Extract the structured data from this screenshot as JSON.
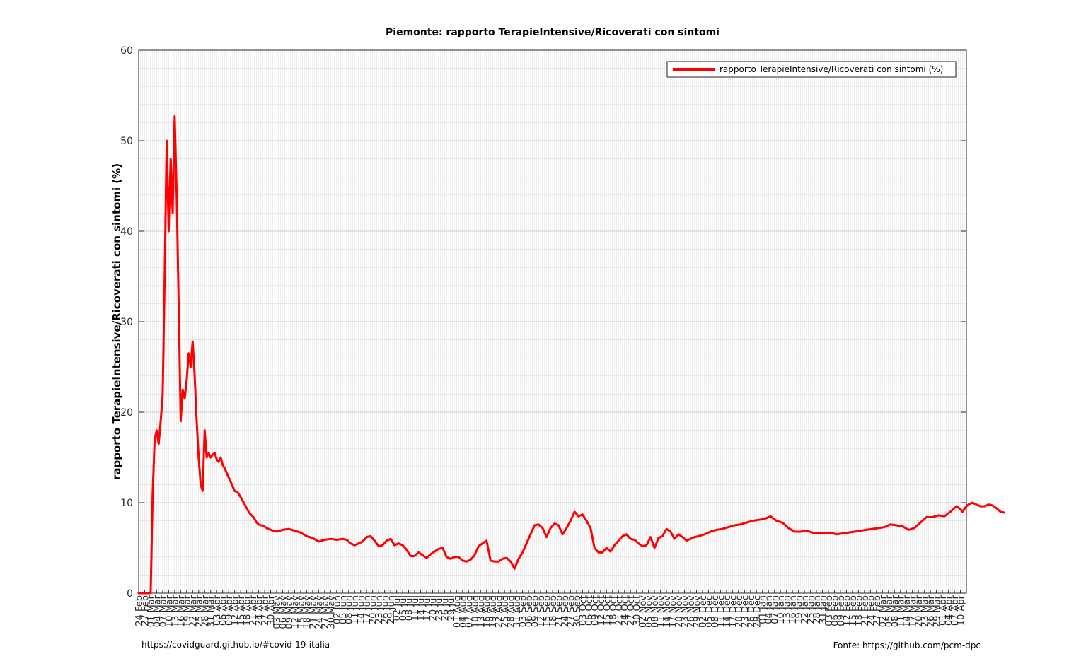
{
  "footer": {
    "left": "https://covidguard.github.io/#covid-19-italia",
    "right": "Fonte: https://github.com/pcm-dpc"
  },
  "chart_data": {
    "type": "line",
    "title": "Piemonte: rapporto TerapieIntensive/Ricoverati con sintomi",
    "xlabel": "",
    "ylabel": "rapporto TerapieIntensive/Ricoverati con sintomi (%)",
    "ylim": [
      0,
      60
    ],
    "yticks": [
      0,
      10,
      20,
      30,
      40,
      50,
      60
    ],
    "xlim": [
      "2020-02-24",
      "2021-04-13"
    ],
    "grid": true,
    "legend_position": "top-right",
    "x_tick_labels": [
      "24 Feb",
      "27 Feb",
      "01 Mar",
      "04 Mar",
      "07 Mar",
      "10 Mar",
      "13 Mar",
      "16 Mar",
      "19 Mar",
      "22 Mar",
      "25 Mar",
      "28 Mar",
      "31 Mar",
      "03 Apr",
      "06 Apr",
      "09 Apr",
      "12 Apr",
      "15 Apr",
      "18 Apr",
      "21 Apr",
      "24 Apr",
      "27 Apr",
      "30 Apr",
      "03 May",
      "06 May",
      "09 May",
      "12 May",
      "15 May",
      "18 May",
      "21 May",
      "24 May",
      "27 May",
      "30 May",
      "02 Jun",
      "05 Jun",
      "08 Jun",
      "11 Jun",
      "14 Jun",
      "17 Jun",
      "20 Jun",
      "23 Jun",
      "26 Jun",
      "29 Jun",
      "02 Jul",
      "05 Jul",
      "08 Jul",
      "11 Jul",
      "14 Jul",
      "17 Jul",
      "20 Jul",
      "23 Jul",
      "26 Jul",
      "29 Jul",
      "01 Aug",
      "04 Aug",
      "07 Aug",
      "10 Aug",
      "13 Aug",
      "16 Aug",
      "19 Aug",
      "22 Aug",
      "25 Aug",
      "28 Aug",
      "31 Aug",
      "03 Sep",
      "06 Sep",
      "09 Sep",
      "12 Sep",
      "15 Sep",
      "18 Sep",
      "21 Sep",
      "24 Sep",
      "27 Sep",
      "30 Sep",
      "03 Oct",
      "06 Oct",
      "09 Oct",
      "12 Oct",
      "15 Oct",
      "18 Oct",
      "21 Oct",
      "24 Oct",
      "27 Oct",
      "30 Oct",
      "02 Nov",
      "05 Nov",
      "08 Nov",
      "11 Nov",
      "14 Nov",
      "17 Nov",
      "20 Nov",
      "23 Nov",
      "26 Nov",
      "29 Nov",
      "02 Dec",
      "05 Dec",
      "08 Dec",
      "11 Dec",
      "14 Dec",
      "17 Dec",
      "20 Dec",
      "23 Dec",
      "26 Dec",
      "29 Dec",
      "01 Jan",
      "04 Jan",
      "07 Jan",
      "10 Jan",
      "13 Jan",
      "16 Jan",
      "19 Jan",
      "22 Jan",
      "25 Jan",
      "28 Jan",
      "31 Jan",
      "03 Feb",
      "06 Feb",
      "09 Feb",
      "12 Feb",
      "15 Feb",
      "18 Feb",
      "21 Feb",
      "24 Feb",
      "27 Feb",
      "02 Mar",
      "05 Mar",
      "08 Mar",
      "11 Mar",
      "14 Mar",
      "17 Mar",
      "20 Mar",
      "23 Mar",
      "26 Mar",
      "29 Mar",
      "01 Apr",
      "04 Apr",
      "07 Apr",
      "10 Apr"
    ],
    "series": [
      {
        "name": "rapporto TerapieIntensive/Ricoverati con sintomi (%)",
        "color": "#ff0000",
        "points": [
          [
            "2020-02-24",
            0
          ],
          [
            "2020-02-25",
            0
          ],
          [
            "2020-02-26",
            0
          ],
          [
            "2020-02-27",
            0
          ],
          [
            "2020-02-28",
            0
          ],
          [
            "2020-02-29",
            0
          ],
          [
            "2020-03-01",
            0
          ],
          [
            "2020-03-02",
            11
          ],
          [
            "2020-03-03",
            17
          ],
          [
            "2020-03-04",
            18
          ],
          [
            "2020-03-05",
            16.5
          ],
          [
            "2020-03-06",
            19
          ],
          [
            "2020-03-07",
            22
          ],
          [
            "2020-03-08",
            35
          ],
          [
            "2020-03-09",
            50
          ],
          [
            "2020-03-10",
            40
          ],
          [
            "2020-03-11",
            48
          ],
          [
            "2020-03-12",
            42
          ],
          [
            "2020-03-13",
            52.7
          ],
          [
            "2020-03-14",
            44
          ],
          [
            "2020-03-15",
            32
          ],
          [
            "2020-03-16",
            19
          ],
          [
            "2020-03-17",
            22.5
          ],
          [
            "2020-03-18",
            21.5
          ],
          [
            "2020-03-19",
            23.5
          ],
          [
            "2020-03-20",
            26.5
          ],
          [
            "2020-03-21",
            25
          ],
          [
            "2020-03-22",
            27.8
          ],
          [
            "2020-03-23",
            24
          ],
          [
            "2020-03-24",
            19
          ],
          [
            "2020-03-25",
            15
          ],
          [
            "2020-03-26",
            12
          ],
          [
            "2020-03-27",
            11.3
          ],
          [
            "2020-03-28",
            18
          ],
          [
            "2020-03-29",
            15
          ],
          [
            "2020-03-30",
            15.5
          ],
          [
            "2020-03-31",
            15
          ],
          [
            "2020-04-01",
            15.3
          ],
          [
            "2020-04-02",
            15.5
          ],
          [
            "2020-04-03",
            14.8
          ],
          [
            "2020-04-04",
            14.5
          ],
          [
            "2020-04-05",
            15
          ],
          [
            "2020-04-06",
            14.2
          ],
          [
            "2020-04-07",
            13.8
          ],
          [
            "2020-04-08",
            13.3
          ],
          [
            "2020-04-09",
            12.8
          ],
          [
            "2020-04-10",
            12.3
          ],
          [
            "2020-04-11",
            11.8
          ],
          [
            "2020-04-12",
            11.3
          ],
          [
            "2020-04-13",
            11.2
          ],
          [
            "2020-04-14",
            11
          ],
          [
            "2020-04-15",
            10.6
          ],
          [
            "2020-04-16",
            10.2
          ],
          [
            "2020-04-17",
            9.8
          ],
          [
            "2020-04-18",
            9.4
          ],
          [
            "2020-04-19",
            9
          ],
          [
            "2020-04-20",
            8.7
          ],
          [
            "2020-04-21",
            8.5
          ],
          [
            "2020-04-22",
            8.2
          ],
          [
            "2020-04-23",
            7.8
          ],
          [
            "2020-04-24",
            7.6
          ],
          [
            "2020-04-25",
            7.5
          ],
          [
            "2020-04-26",
            7.5
          ],
          [
            "2020-04-28",
            7.2
          ],
          [
            "2020-04-30",
            7
          ],
          [
            "2020-05-03",
            6.8
          ],
          [
            "2020-05-06",
            7
          ],
          [
            "2020-05-09",
            7.1
          ],
          [
            "2020-05-12",
            6.9
          ],
          [
            "2020-05-15",
            6.7
          ],
          [
            "2020-05-18",
            6.3
          ],
          [
            "2020-05-21",
            6.1
          ],
          [
            "2020-05-24",
            5.7
          ],
          [
            "2020-05-27",
            5.9
          ],
          [
            "2020-05-30",
            6
          ],
          [
            "2020-06-02",
            5.9
          ],
          [
            "2020-06-05",
            6
          ],
          [
            "2020-06-07",
            5.9
          ],
          [
            "2020-06-09",
            5.5
          ],
          [
            "2020-06-11",
            5.3
          ],
          [
            "2020-06-13",
            5.5
          ],
          [
            "2020-06-15",
            5.7
          ],
          [
            "2020-06-17",
            6.2
          ],
          [
            "2020-06-19",
            6.3
          ],
          [
            "2020-06-21",
            5.8
          ],
          [
            "2020-06-23",
            5.2
          ],
          [
            "2020-06-25",
            5.3
          ],
          [
            "2020-06-27",
            5.8
          ],
          [
            "2020-06-29",
            6
          ],
          [
            "2020-07-01",
            5.3
          ],
          [
            "2020-07-03",
            5.5
          ],
          [
            "2020-07-05",
            5.3
          ],
          [
            "2020-07-07",
            4.8
          ],
          [
            "2020-07-09",
            4.1
          ],
          [
            "2020-07-11",
            4.1
          ],
          [
            "2020-07-13",
            4.5
          ],
          [
            "2020-07-15",
            4.2
          ],
          [
            "2020-07-17",
            3.9
          ],
          [
            "2020-07-19",
            4.3
          ],
          [
            "2020-07-21",
            4.6
          ],
          [
            "2020-07-23",
            4.9
          ],
          [
            "2020-07-25",
            5
          ],
          [
            "2020-07-27",
            4
          ],
          [
            "2020-07-29",
            3.8
          ],
          [
            "2020-07-31",
            4
          ],
          [
            "2020-08-02",
            4
          ],
          [
            "2020-08-04",
            3.6
          ],
          [
            "2020-08-06",
            3.5
          ],
          [
            "2020-08-08",
            3.7
          ],
          [
            "2020-08-10",
            4.2
          ],
          [
            "2020-08-12",
            5.2
          ],
          [
            "2020-08-14",
            5.5
          ],
          [
            "2020-08-16",
            5.8
          ],
          [
            "2020-08-18",
            3.6
          ],
          [
            "2020-08-20",
            3.5
          ],
          [
            "2020-08-22",
            3.5
          ],
          [
            "2020-08-24",
            3.8
          ],
          [
            "2020-08-26",
            3.9
          ],
          [
            "2020-08-28",
            3.5
          ],
          [
            "2020-08-30",
            2.7
          ],
          [
            "2020-09-01",
            3.8
          ],
          [
            "2020-09-03",
            4.5
          ],
          [
            "2020-09-05",
            5.5
          ],
          [
            "2020-09-07",
            6.5
          ],
          [
            "2020-09-09",
            7.5
          ],
          [
            "2020-09-11",
            7.6
          ],
          [
            "2020-09-13",
            7.2
          ],
          [
            "2020-09-15",
            6.2
          ],
          [
            "2020-09-17",
            7.2
          ],
          [
            "2020-09-19",
            7.7
          ],
          [
            "2020-09-21",
            7.5
          ],
          [
            "2020-09-23",
            6.5
          ],
          [
            "2020-09-25",
            7.2
          ],
          [
            "2020-09-27",
            8
          ],
          [
            "2020-09-29",
            9
          ],
          [
            "2020-10-01",
            8.5
          ],
          [
            "2020-10-03",
            8.7
          ],
          [
            "2020-10-05",
            8
          ],
          [
            "2020-10-07",
            7.2
          ],
          [
            "2020-10-09",
            5
          ],
          [
            "2020-10-11",
            4.5
          ],
          [
            "2020-10-13",
            4.5
          ],
          [
            "2020-10-15",
            5
          ],
          [
            "2020-10-17",
            4.6
          ],
          [
            "2020-10-19",
            5.3
          ],
          [
            "2020-10-21",
            5.8
          ],
          [
            "2020-10-23",
            6.3
          ],
          [
            "2020-10-25",
            6.5
          ],
          [
            "2020-10-27",
            6
          ],
          [
            "2020-10-29",
            5.9
          ],
          [
            "2020-10-31",
            5.5
          ],
          [
            "2020-11-02",
            5.2
          ],
          [
            "2020-11-04",
            5.3
          ],
          [
            "2020-11-06",
            6.2
          ],
          [
            "2020-11-08",
            5
          ],
          [
            "2020-11-10",
            6.1
          ],
          [
            "2020-11-12",
            6.3
          ],
          [
            "2020-11-14",
            7.1
          ],
          [
            "2020-11-16",
            6.8
          ],
          [
            "2020-11-18",
            6
          ],
          [
            "2020-11-20",
            6.5
          ],
          [
            "2020-11-22",
            6.2
          ],
          [
            "2020-11-24",
            5.8
          ],
          [
            "2020-11-26",
            6
          ],
          [
            "2020-11-28",
            6.2
          ],
          [
            "2020-11-30",
            6.3
          ],
          [
            "2020-12-03",
            6.5
          ],
          [
            "2020-12-06",
            6.8
          ],
          [
            "2020-12-09",
            7
          ],
          [
            "2020-12-12",
            7.1
          ],
          [
            "2020-12-15",
            7.3
          ],
          [
            "2020-12-18",
            7.5
          ],
          [
            "2020-12-21",
            7.6
          ],
          [
            "2020-12-24",
            7.8
          ],
          [
            "2020-12-27",
            8
          ],
          [
            "2020-12-30",
            8.1
          ],
          [
            "2021-01-02",
            8.2
          ],
          [
            "2021-01-05",
            8.5
          ],
          [
            "2021-01-08",
            8
          ],
          [
            "2021-01-11",
            7.8
          ],
          [
            "2021-01-14",
            7.2
          ],
          [
            "2021-01-17",
            6.8
          ],
          [
            "2021-01-20",
            6.8
          ],
          [
            "2021-01-23",
            6.9
          ],
          [
            "2021-01-26",
            6.7
          ],
          [
            "2021-01-29",
            6.6
          ],
          [
            "2021-02-01",
            6.6
          ],
          [
            "2021-02-04",
            6.7
          ],
          [
            "2021-02-07",
            6.5
          ],
          [
            "2021-02-10",
            6.6
          ],
          [
            "2021-02-13",
            6.7
          ],
          [
            "2021-02-16",
            6.8
          ],
          [
            "2021-02-19",
            6.9
          ],
          [
            "2021-02-22",
            7
          ],
          [
            "2021-02-25",
            7.1
          ],
          [
            "2021-02-28",
            7.2
          ],
          [
            "2021-03-03",
            7.3
          ],
          [
            "2021-03-06",
            7.6
          ],
          [
            "2021-03-09",
            7.5
          ],
          [
            "2021-03-12",
            7.4
          ],
          [
            "2021-03-15",
            7
          ],
          [
            "2021-03-18",
            7.2
          ],
          [
            "2021-03-21",
            7.8
          ],
          [
            "2021-03-24",
            8.4
          ],
          [
            "2021-03-27",
            8.4
          ],
          [
            "2021-03-30",
            8.6
          ],
          [
            "2021-04-02",
            8.5
          ],
          [
            "2021-04-05",
            9
          ],
          [
            "2021-04-08",
            9.6
          ],
          [
            "2021-04-10",
            9.3
          ],
          [
            "2021-04-11",
            9
          ],
          [
            "2021-04-12",
            9.3
          ],
          [
            "2021-04-13",
            9.6
          ],
          [
            "2021-04-14",
            9.8
          ],
          [
            "2021-04-16",
            10
          ],
          [
            "2021-04-18",
            9.8
          ],
          [
            "2021-04-20",
            9.6
          ],
          [
            "2021-04-22",
            9.6
          ],
          [
            "2021-04-24",
            9.8
          ],
          [
            "2021-04-26",
            9.7
          ],
          [
            "2021-04-28",
            9.4
          ],
          [
            "2021-04-30",
            9
          ],
          [
            "2021-05-02",
            8.9
          ]
        ]
      }
    ]
  }
}
